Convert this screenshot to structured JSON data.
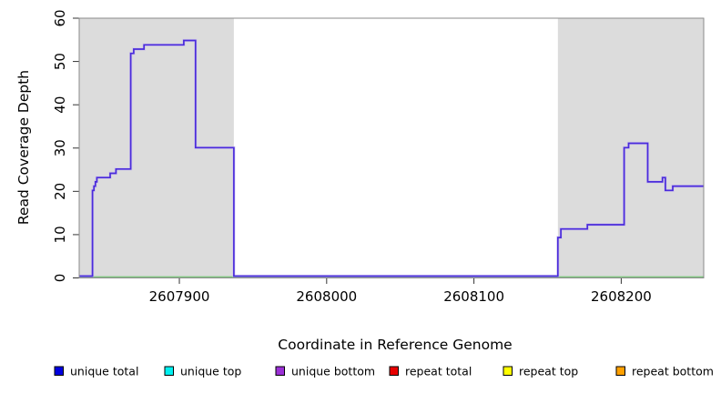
{
  "chart_data": {
    "type": "line",
    "title": "",
    "xlabel": "Coordinate in Reference Genome",
    "ylabel": "Read Coverage Depth",
    "xlim": [
      2607832,
      2608256
    ],
    "ylim": [
      0,
      60
    ],
    "xticks": [
      2607900,
      2608000,
      2608100,
      2608200
    ],
    "yticks": [
      0,
      10,
      20,
      30,
      40,
      50,
      60
    ],
    "grid": false,
    "legend_position": "bottom",
    "shaded_regions": {
      "color": "#dcdcdc",
      "ranges": [
        [
          2607832,
          2607937
        ],
        [
          2608157,
          2608256
        ]
      ]
    },
    "series": [
      {
        "name": "unique coverage step line",
        "type": "step",
        "color": "#4a2bdb",
        "halo_color": "#c3b4f0",
        "points": [
          [
            2607832,
            0
          ],
          [
            2607841,
            20
          ],
          [
            2607842,
            21
          ],
          [
            2607843,
            22
          ],
          [
            2607844,
            23
          ],
          [
            2607853,
            24
          ],
          [
            2607857,
            25
          ],
          [
            2607867,
            52
          ],
          [
            2607869,
            53
          ],
          [
            2607876,
            54
          ],
          [
            2607903,
            55
          ],
          [
            2607911,
            30
          ],
          [
            2607937,
            0
          ],
          [
            2608157,
            9
          ],
          [
            2608159,
            11
          ],
          [
            2608177,
            12
          ],
          [
            2608202,
            30
          ],
          [
            2608205,
            31
          ],
          [
            2608218,
            22
          ],
          [
            2608228,
            23
          ],
          [
            2608230,
            20
          ],
          [
            2608235,
            21
          ],
          [
            2608256,
            21
          ]
        ]
      },
      {
        "name": "zero baseline",
        "type": "line",
        "color": "#82c882",
        "points": [
          [
            2607832,
            0
          ],
          [
            2608256,
            0
          ]
        ]
      }
    ],
    "legend": [
      {
        "label": "unique total",
        "color": "#0000e0"
      },
      {
        "label": "unique top",
        "color": "#00f0f0"
      },
      {
        "label": "unique bottom",
        "color": "#9b30d6"
      },
      {
        "label": "repeat total",
        "color": "#e80000"
      },
      {
        "label": "repeat top",
        "color": "#ffff00"
      },
      {
        "label": "repeat bottom",
        "color": "#ffa000"
      }
    ]
  }
}
